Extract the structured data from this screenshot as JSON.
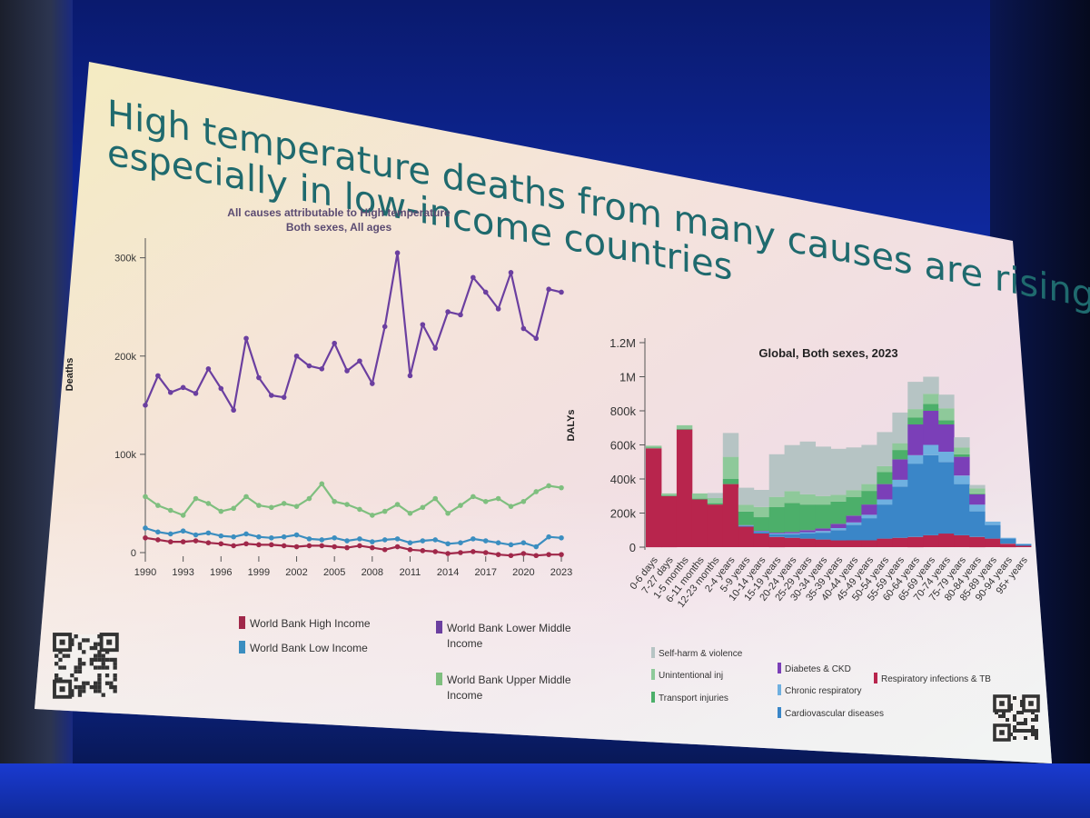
{
  "slide": {
    "title_line1": "High temperature deaths from many causes are rising",
    "title_line2": "especially in low-income countries"
  },
  "chart_data": [
    {
      "type": "line",
      "title": "All causes attributable to High temperature",
      "subtitle": "Both sexes, All ages",
      "ylabel": "Deaths",
      "xlabel": "",
      "ylim": [
        0,
        320000
      ],
      "yticks": [
        "0",
        "100k",
        "200k",
        "300k"
      ],
      "xtick_labels": [
        "1990",
        "1993",
        "1996",
        "1999",
        "2002",
        "2005",
        "2008",
        "2011",
        "2014",
        "2017",
        "2020",
        "2023"
      ],
      "x": [
        1990,
        1991,
        1992,
        1993,
        1994,
        1995,
        1996,
        1997,
        1998,
        1999,
        2000,
        2001,
        2002,
        2003,
        2004,
        2005,
        2006,
        2007,
        2008,
        2009,
        2010,
        2011,
        2012,
        2013,
        2014,
        2015,
        2016,
        2017,
        2018,
        2019,
        2020,
        2021,
        2022,
        2023
      ],
      "series": [
        {
          "name": "World Bank Lower Middle Income",
          "color": "#6b3fa0",
          "values": [
            150000,
            180000,
            163000,
            168000,
            162000,
            187000,
            167000,
            145000,
            218000,
            178000,
            160000,
            158000,
            200000,
            190000,
            187000,
            213000,
            185000,
            195000,
            172000,
            230000,
            305000,
            180000,
            232000,
            208000,
            245000,
            242000,
            280000,
            265000,
            248000,
            285000,
            228000,
            218000,
            268000,
            265000
          ]
        },
        {
          "name": "World Bank Upper Middle Income",
          "color": "#7fbf7f",
          "values": [
            57000,
            48000,
            43000,
            38000,
            55000,
            50000,
            42000,
            45000,
            57000,
            48000,
            46000,
            50000,
            47000,
            55000,
            70000,
            52000,
            49000,
            44000,
            38000,
            42000,
            49000,
            40000,
            46000,
            55000,
            40000,
            48000,
            57000,
            52000,
            55000,
            47000,
            52000,
            62000,
            68000,
            66000
          ]
        },
        {
          "name": "World Bank Low Income",
          "color": "#3b8ec0",
          "values": [
            25000,
            21000,
            19000,
            22000,
            18000,
            20000,
            17000,
            16000,
            19000,
            16000,
            15000,
            16000,
            18000,
            14000,
            13000,
            15000,
            12000,
            14000,
            11000,
            13000,
            14000,
            10000,
            12000,
            13000,
            9000,
            10000,
            14000,
            12000,
            10000,
            8000,
            10000,
            6000,
            16000,
            15000
          ]
        },
        {
          "name": "World Bank High Income",
          "color": "#a0284a",
          "values": [
            15000,
            13000,
            11000,
            11000,
            12000,
            10000,
            9000,
            7000,
            9000,
            8000,
            8000,
            7000,
            6000,
            7000,
            7000,
            6000,
            5000,
            7000,
            5000,
            3000,
            6000,
            3000,
            2000,
            1000,
            -1000,
            0,
            1000,
            0,
            -2000,
            -3000,
            -1000,
            -3000,
            -2000,
            -2000
          ]
        }
      ]
    },
    {
      "type": "bar",
      "stacked": true,
      "title": "Global, Both sexes, 2023",
      "ylabel": "DALYs",
      "ylim": [
        0,
        1200000
      ],
      "yticks": [
        "0",
        "200k",
        "400k",
        "600k",
        "800k",
        "1M",
        "1.2M"
      ],
      "categories": [
        "0-6 days",
        "7-27 days",
        "1-5 months",
        "6-11 months",
        "12-23 months",
        "2-4 years",
        "5-9 years",
        "10-14 years",
        "15-19 years",
        "20-24 years",
        "25-29 years",
        "30-34 years",
        "35-39 years",
        "40-44 years",
        "45-49 years",
        "50-54 years",
        "55-59 years",
        "60-64 years",
        "65-69 years",
        "70-74 years",
        "75-79 years",
        "80-84 years",
        "85-89 years",
        "90-94 years",
        "95+ years"
      ],
      "series": [
        {
          "name": "Respiratory infections & TB",
          "color": "#b8254d",
          "values": [
            580000,
            300000,
            690000,
            280000,
            250000,
            370000,
            120000,
            80000,
            60000,
            55000,
            50000,
            45000,
            40000,
            40000,
            40000,
            50000,
            55000,
            60000,
            70000,
            80000,
            70000,
            60000,
            50000,
            20000,
            8000
          ]
        },
        {
          "name": "Cardiovascular diseases",
          "color": "#3a86c8",
          "values": [
            0,
            0,
            0,
            0,
            0,
            0,
            5000,
            10000,
            15000,
            20000,
            30000,
            40000,
            60000,
            90000,
            130000,
            200000,
            300000,
            430000,
            470000,
            420000,
            300000,
            150000,
            80000,
            30000,
            10000
          ]
        },
        {
          "name": "Chronic respiratory",
          "color": "#6fb0e0",
          "values": [
            0,
            0,
            0,
            0,
            0,
            0,
            2000,
            3000,
            5000,
            6000,
            8000,
            10000,
            12000,
            15000,
            20000,
            30000,
            40000,
            50000,
            60000,
            60000,
            50000,
            40000,
            20000,
            5000,
            2000
          ]
        },
        {
          "name": "Diabetes & CKD",
          "color": "#7b3fb8",
          "values": [
            0,
            0,
            0,
            0,
            0,
            0,
            2000,
            3000,
            5000,
            8000,
            12000,
            15000,
            25000,
            40000,
            60000,
            90000,
            120000,
            180000,
            200000,
            160000,
            110000,
            60000,
            0,
            0,
            0
          ]
        },
        {
          "name": "Transport injuries",
          "color": "#4caf6a",
          "values": [
            5000,
            5000,
            5000,
            5000,
            8000,
            30000,
            80000,
            80000,
            150000,
            170000,
            150000,
            140000,
            130000,
            110000,
            80000,
            70000,
            55000,
            40000,
            40000,
            25000,
            15000,
            5000,
            0,
            0,
            0
          ]
        },
        {
          "name": "Unintentional inj",
          "color": "#8ec99a",
          "values": [
            10000,
            10000,
            20000,
            30000,
            30000,
            130000,
            40000,
            60000,
            60000,
            70000,
            60000,
            50000,
            40000,
            40000,
            40000,
            35000,
            40000,
            50000,
            60000,
            70000,
            40000,
            30000,
            0,
            0,
            0
          ]
        },
        {
          "name": "Self-harm & violence",
          "color": "#b6c4c4",
          "values": [
            0,
            0,
            0,
            0,
            30000,
            140000,
            100000,
            100000,
            250000,
            270000,
            310000,
            290000,
            270000,
            250000,
            230000,
            200000,
            180000,
            160000,
            100000,
            80000,
            60000,
            20000,
            0,
            0,
            0
          ]
        }
      ]
    }
  ]
}
